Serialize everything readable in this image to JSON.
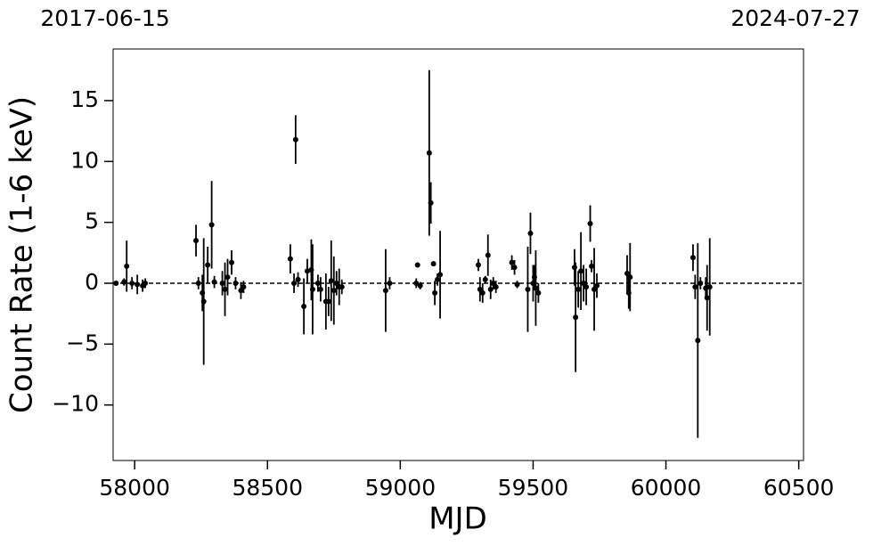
{
  "chart_data": {
    "type": "errorbar",
    "xlabel": "MJD",
    "ylabel": "Count Rate (1-6 keV)",
    "xlim": [
      57919,
      60518
    ],
    "ylim": [
      -14.56,
      19.24
    ],
    "xticks": [
      58000,
      58500,
      59000,
      59500,
      60000,
      60500
    ],
    "yticks": [
      {
        "value": -10,
        "label": "−10"
      },
      {
        "value": -5,
        "label": "−5"
      },
      0,
      5,
      10,
      15
    ],
    "x2ticks": [
      {
        "value": 57919,
        "label": "2017-06-15"
      },
      {
        "value": 60518,
        "label": "2024-07-27"
      }
    ],
    "reference_line": 0,
    "series": [
      {
        "color": "#000000",
        "x": [
          57930,
          57960,
          57970,
          57990,
          58010,
          58030,
          58040,
          58231,
          58240,
          58255,
          58260,
          58275,
          58290,
          58300,
          58330,
          58340,
          58350,
          58365,
          58380,
          58400,
          58410,
          58586,
          58600,
          58606,
          58615,
          58637,
          58650,
          58665,
          58670,
          58690,
          58700,
          58720,
          58730,
          58740,
          58750,
          58760,
          58770,
          58780,
          58945,
          58960,
          59060,
          59065,
          59075,
          59109,
          59115,
          59125,
          59130,
          59140,
          59150,
          59294,
          59300,
          59310,
          59320,
          59330,
          59340,
          59350,
          59360,
          59420,
          59430,
          59440,
          59480,
          59490,
          59500,
          59505,
          59510,
          59520,
          59656,
          59660,
          59670,
          59680,
          59690,
          59700,
          59715,
          59720,
          59730,
          59740,
          59854,
          59860,
          59865,
          60102,
          60110,
          60120,
          60130,
          60150,
          60155,
          60165
        ],
        "y": [
          0,
          0.1,
          1.4,
          0,
          -0.1,
          -0.2,
          0,
          3.5,
          0,
          -0.8,
          -1.5,
          1.5,
          4.8,
          0.1,
          0,
          -0.5,
          0.5,
          1.7,
          0,
          -0.6,
          -0.3,
          2.0,
          0,
          11.8,
          0.3,
          -1.9,
          1.0,
          1.1,
          -0.5,
          0,
          -0.5,
          -1.5,
          -1.5,
          0.2,
          -0.6,
          0,
          -0.3,
          -0.3,
          -0.6,
          0,
          0,
          1.5,
          -0.2,
          10.7,
          6.6,
          1.6,
          -0.8,
          0.3,
          0.7,
          1.5,
          -0.5,
          -0.8,
          0.3,
          2.3,
          -0.5,
          0,
          -0.3,
          1.7,
          1.3,
          -0.1,
          -0.5,
          4.1,
          0,
          0.5,
          -0.4,
          -0.8,
          1.3,
          -2.8,
          -0.5,
          1.0,
          0,
          -0.3,
          4.9,
          1.4,
          -0.5,
          -0.2,
          0.8,
          -0.8,
          0.5,
          2.1,
          -0.3,
          -4.7,
          0,
          -0.4,
          -1.2,
          -0.3
        ],
        "yerr": [
          0.2,
          0.3,
          2.1,
          0.5,
          0.8,
          0.5,
          0.4,
          1.3,
          0.5,
          1.5,
          5.2,
          1.5,
          3.6,
          0.5,
          1.0,
          2.2,
          1.5,
          1.0,
          0.5,
          0.7,
          0.5,
          1.2,
          0.8,
          2.0,
          0.6,
          2.3,
          1.0,
          2.5,
          3.7,
          0.7,
          1.0,
          2.3,
          1.2,
          3.3,
          2.8,
          1.0,
          1.5,
          0.6,
          3.4,
          0.5,
          0.4,
          0.2,
          0.3,
          6.8,
          1.7,
          0.2,
          1.0,
          0.5,
          3.6,
          0.5,
          1.0,
          0.8,
          0.3,
          1.7,
          0.8,
          0.5,
          0.5,
          0.6,
          0.6,
          0.3,
          3.5,
          1.7,
          1.5,
          1.0,
          3.1,
          0.8,
          1.5,
          4.5,
          1.5,
          3.2,
          1.5,
          1.5,
          1.5,
          0.5,
          3.4,
          1.0,
          1.5,
          1.3,
          2.8,
          1.1,
          1.0,
          8.0,
          0.5,
          0.9,
          2.7,
          4.0
        ]
      }
    ]
  }
}
